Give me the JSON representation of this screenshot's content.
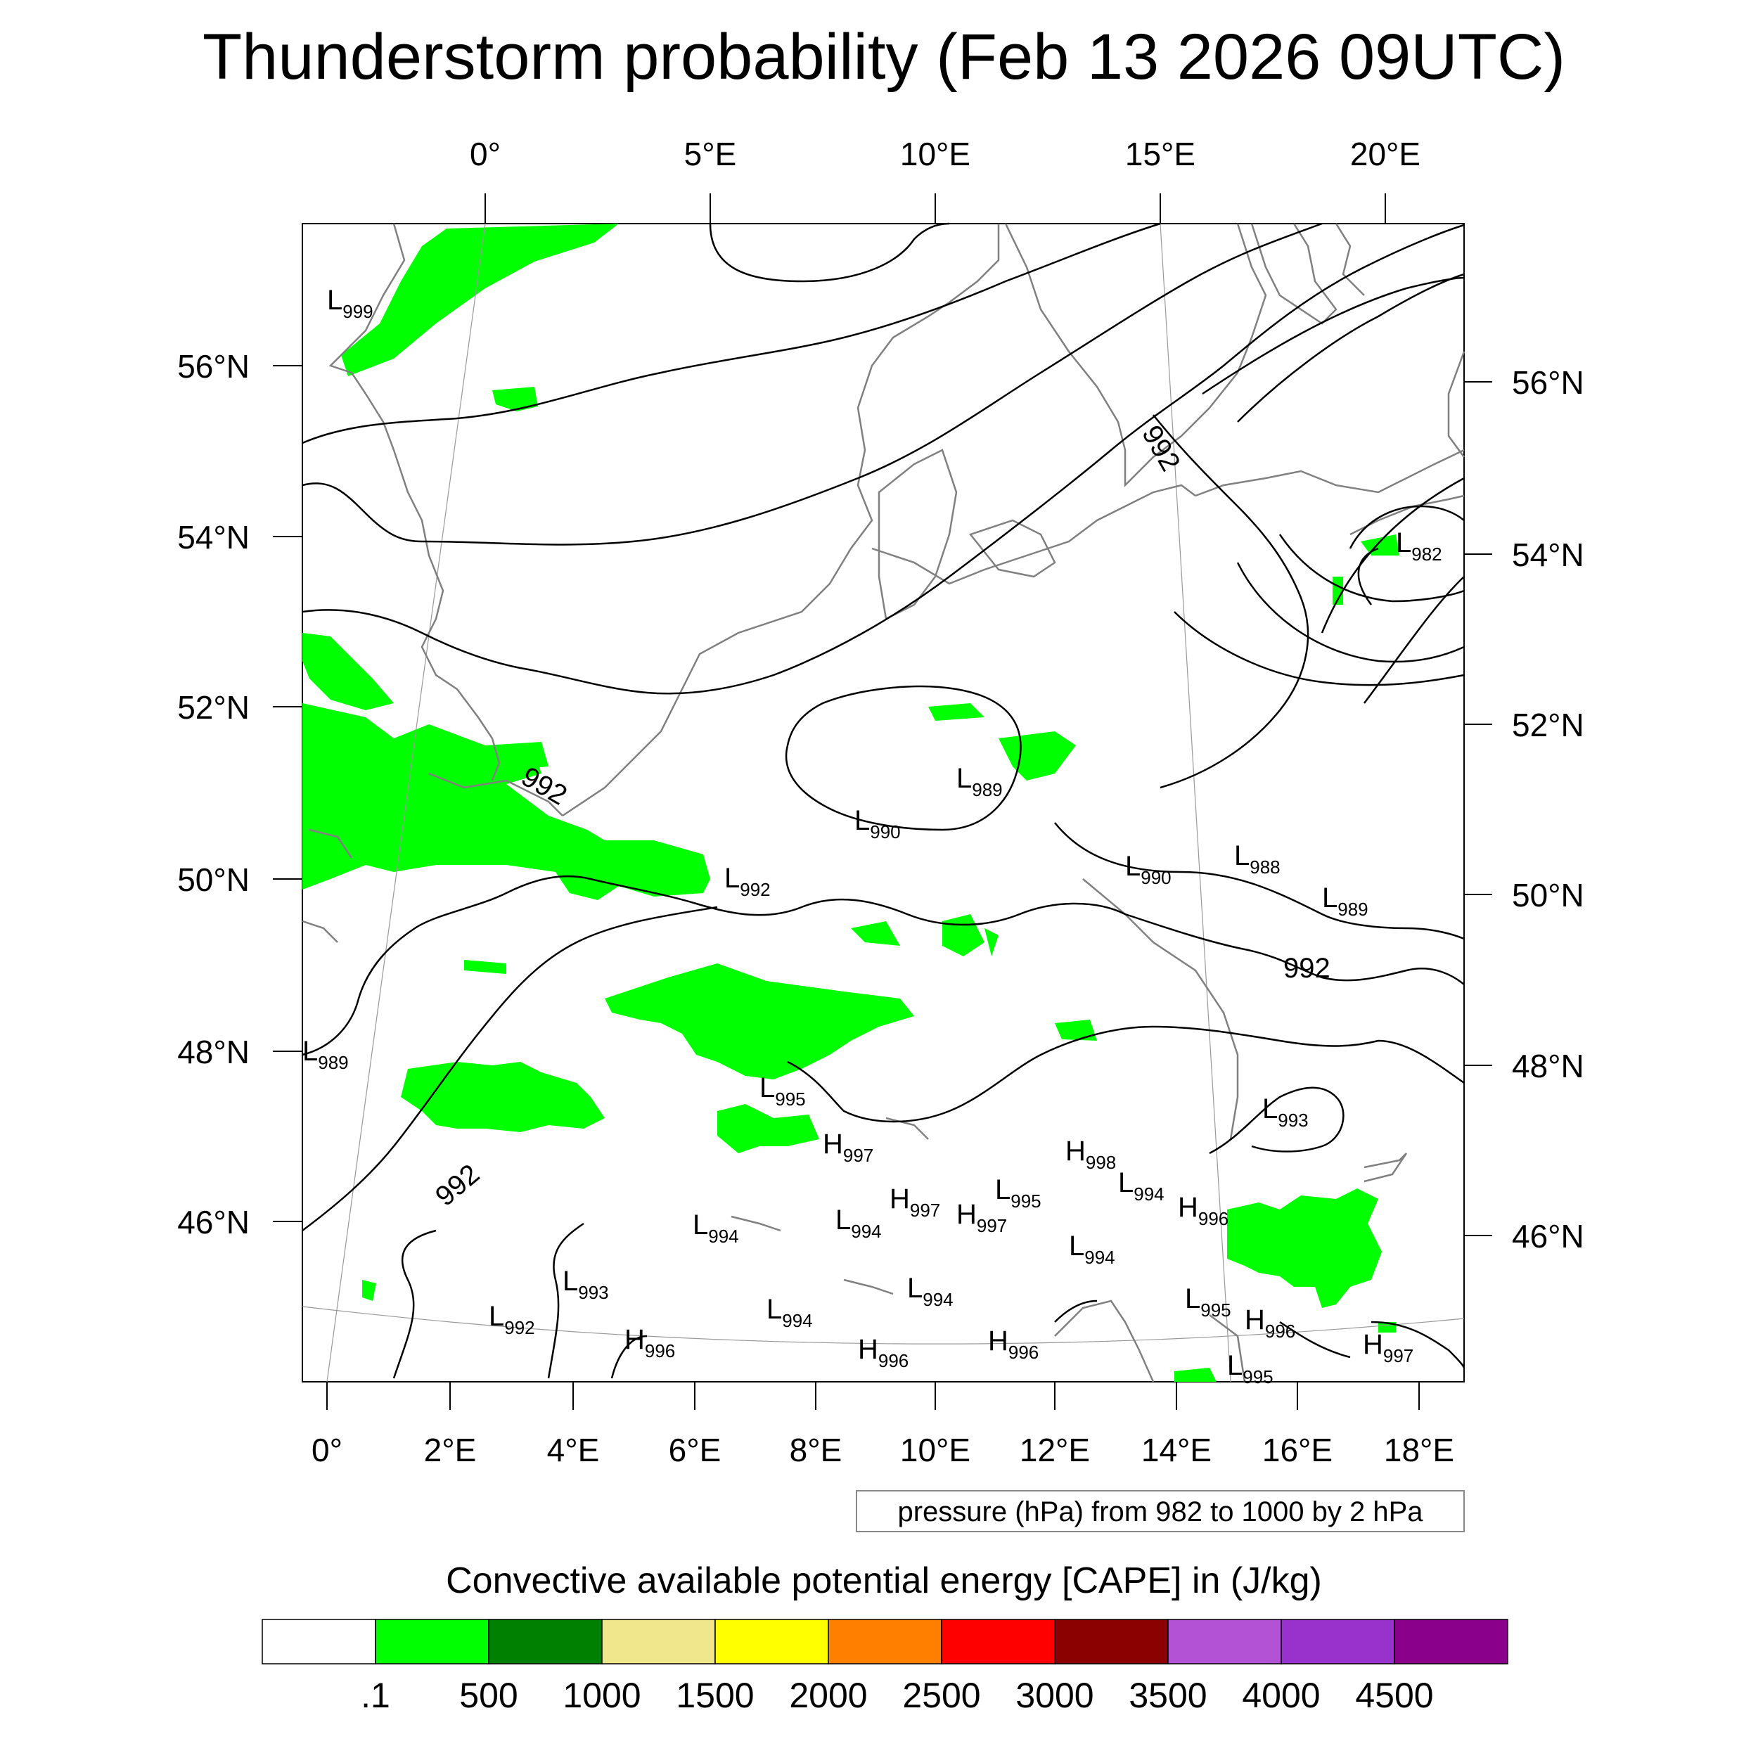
{
  "title": "Thunderstorm probability (Feb 13 2026 09UTC)",
  "top_lon_labels": [
    "0°",
    "5°E",
    "10°E",
    "15°E",
    "20°E"
  ],
  "bottom_lon_labels": [
    "0°",
    "2°E",
    "4°E",
    "6°E",
    "8°E",
    "10°E",
    "12°E",
    "14°E",
    "16°E",
    "18°E"
  ],
  "left_lat_labels": [
    "56°N",
    "54°N",
    "52°N",
    "50°N",
    "48°N",
    "46°N"
  ],
  "right_lat_labels": [
    "56°N",
    "54°N",
    "52°N",
    "50°N",
    "48°N",
    "46°N"
  ],
  "pressure_note": "pressure (hPa) from 982 to 1000 by 2 hPa",
  "colorbar": {
    "title": "Convective available potential energy [CAPE] in (J/kg)",
    "colors": [
      "#ffffff",
      "#00ff00",
      "#008000",
      "#f0e68c",
      "#ffff00",
      "#ff8000",
      "#ff0000",
      "#8b0000",
      "#b452d6",
      "#9932cc",
      "#8b008b"
    ],
    "tick_labels": [
      ".1",
      "500",
      "1000",
      "1500",
      "2000",
      "2500",
      "3000",
      "3500",
      "4000",
      "4500"
    ]
  },
  "contour_labels": [
    "992",
    "992",
    "992",
    "992"
  ],
  "pressure_centers": [
    {
      "type": "L",
      "value": "999"
    },
    {
      "type": "L",
      "value": "982"
    },
    {
      "type": "L",
      "value": "989"
    },
    {
      "type": "L",
      "value": "990"
    },
    {
      "type": "L",
      "value": "990"
    },
    {
      "type": "L",
      "value": "988"
    },
    {
      "type": "L",
      "value": "989"
    },
    {
      "type": "L",
      "value": "992"
    },
    {
      "type": "L",
      "value": "989"
    },
    {
      "type": "L",
      "value": "995"
    },
    {
      "type": "L",
      "value": "993"
    },
    {
      "type": "H",
      "value": "997"
    },
    {
      "type": "H",
      "value": "998"
    },
    {
      "type": "L",
      "value": "994"
    },
    {
      "type": "H",
      "value": "997"
    },
    {
      "type": "L",
      "value": "995"
    },
    {
      "type": "H",
      "value": "997"
    },
    {
      "type": "H",
      "value": "996"
    },
    {
      "type": "L",
      "value": "994"
    },
    {
      "type": "L",
      "value": "994"
    },
    {
      "type": "L",
      "value": "994"
    },
    {
      "type": "L",
      "value": "994"
    },
    {
      "type": "L",
      "value": "993"
    },
    {
      "type": "L",
      "value": "992"
    },
    {
      "type": "L",
      "value": "994"
    },
    {
      "type": "H",
      "value": "996"
    },
    {
      "type": "H",
      "value": "996"
    },
    {
      "type": "H",
      "value": "996"
    },
    {
      "type": "L",
      "value": "995"
    },
    {
      "type": "H",
      "value": "996"
    },
    {
      "type": "H",
      "value": "997"
    },
    {
      "type": "L",
      "value": "995"
    }
  ]
}
